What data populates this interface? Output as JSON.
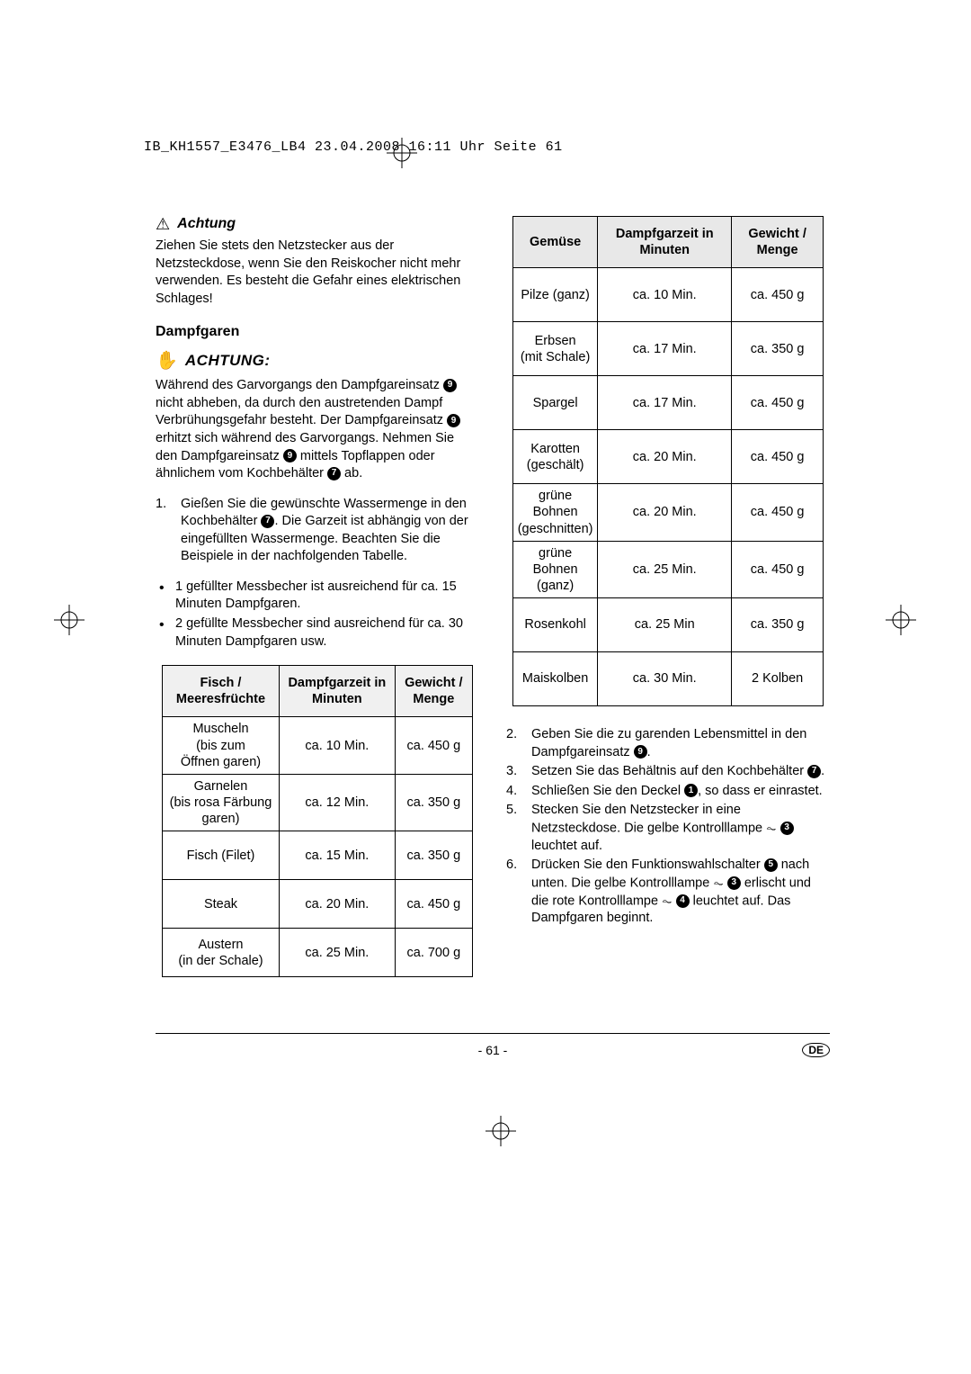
{
  "header": "IB_KH1557_E3476_LB4  23.04.2008  16:11 Uhr  Seite 61",
  "warning": {
    "title": "Achtung",
    "body": "Ziehen Sie stets den Netzstecker aus der Netzsteckdose, wenn Sie den Reiskocher nicht mehr verwenden. Es besteht die Gefahr eines elektrischen Schlages!"
  },
  "section": {
    "title": "Dampfgaren",
    "achtung_title": "ACHTUNG:",
    "achtung_body_1": "Während des Garvorgangs den Dampfgareinsatz ",
    "achtung_body_2": " nicht abheben, da durch den austretenden Dampf Verbrühungsgefahr besteht. Der Dampfgareinsatz ",
    "achtung_body_3": " erhitzt sich während des Garvorgangs. Nehmen Sie den Dampfgareinsatz ",
    "achtung_body_4": " mittels Topflappen oder ähnlichem vom Kochbehälter ",
    "achtung_body_5": " ab."
  },
  "step1": {
    "num": "1.",
    "a": "Gießen Sie die gewünschte Wassermenge in den Kochbehälter ",
    "b": ". Die Garzeit ist abhängig von der eingefüllten Wassermenge. Beachten Sie die Beispiele in der nachfolgenden Tabelle."
  },
  "bullets": [
    "1 gefüllter Messbecher ist ausreichend für ca. 15 Minuten Dampfgaren.",
    "2 gefüllte Messbecher sind ausreichend für ca. 30 Minuten Dampfgaren usw."
  ],
  "table1": {
    "headers": [
      "Fisch / Meeresfrüchte",
      "Dampfgarzeit in Minuten",
      "Gewicht / Menge"
    ],
    "rows": [
      [
        "Muscheln\n(bis zum\nÖffnen garen)",
        "ca. 10 Min.",
        "ca. 450 g"
      ],
      [
        "Garnelen\n(bis rosa Färbung garen)",
        "ca. 12 Min.",
        "ca. 350 g"
      ],
      [
        "Fisch (Filet)",
        "ca. 15 Min.",
        "ca. 350 g"
      ],
      [
        "Steak",
        "ca. 20 Min.",
        "ca. 450 g"
      ],
      [
        "Austern\n(in der Schale)",
        "ca. 25 Min.",
        "ca. 700 g"
      ]
    ]
  },
  "table2": {
    "headers": [
      "Gemüse",
      "Dampfgarzeit in Minuten",
      "Gewicht / Menge"
    ],
    "rows": [
      [
        "Pilze (ganz)",
        "ca. 10 Min.",
        "ca. 450 g"
      ],
      [
        "Erbsen\n(mit Schale)",
        "ca. 17 Min.",
        "ca. 350 g"
      ],
      [
        "Spargel",
        "ca. 17 Min.",
        "ca. 450 g"
      ],
      [
        "Karotten\n(geschält)",
        "ca. 20 Min.",
        "ca. 450 g"
      ],
      [
        "grüne Bohnen\n(geschnitten)",
        "ca. 20 Min.",
        "ca. 450 g"
      ],
      [
        "grüne Bohnen\n(ganz)",
        "ca. 25 Min.",
        "ca. 450 g"
      ],
      [
        "Rosenkohl",
        "ca. 25 Min",
        "ca. 350 g"
      ],
      [
        "Maiskolben",
        "ca. 30 Min.",
        "2 Kolben"
      ]
    ]
  },
  "steps2": {
    "s2n": "2.",
    "s2a": "Geben Sie die zu garenden Lebensmittel in den Dampfgareinsatz ",
    "s2b": ".",
    "s3n": "3.",
    "s3a": "Setzen Sie das Behältnis auf den Kochbehälter ",
    "s3b": ".",
    "s4n": "4.",
    "s4a": "Schließen Sie den Deckel ",
    "s4b": ", so dass er einrastet.",
    "s5n": "5.",
    "s5a": "Stecken Sie den Netzstecker in eine Netzsteckdose. Die gelbe Kontrolllampe ",
    "s5b": " leuchtet auf.",
    "s6n": "6.",
    "s6a": "Drücken Sie den Funktionswahlschalter ",
    "s6b": " nach unten. Die gelbe Kontrolllampe ",
    "s6c": " erlischt und die rote Kontrolllampe ",
    "s6d": " leuchtet auf. Das Dampfgaren beginnt."
  },
  "refs": {
    "r1": "1",
    "r3": "3",
    "r4": "4",
    "r5": "5",
    "r7": "7",
    "r9": "9"
  },
  "footer": {
    "page": "- 61 -",
    "lang": "DE"
  },
  "colors": {
    "header_bg": "#f0f0f0",
    "header_bg2": "#e8e8e8",
    "border": "#000000",
    "text": "#000000"
  }
}
